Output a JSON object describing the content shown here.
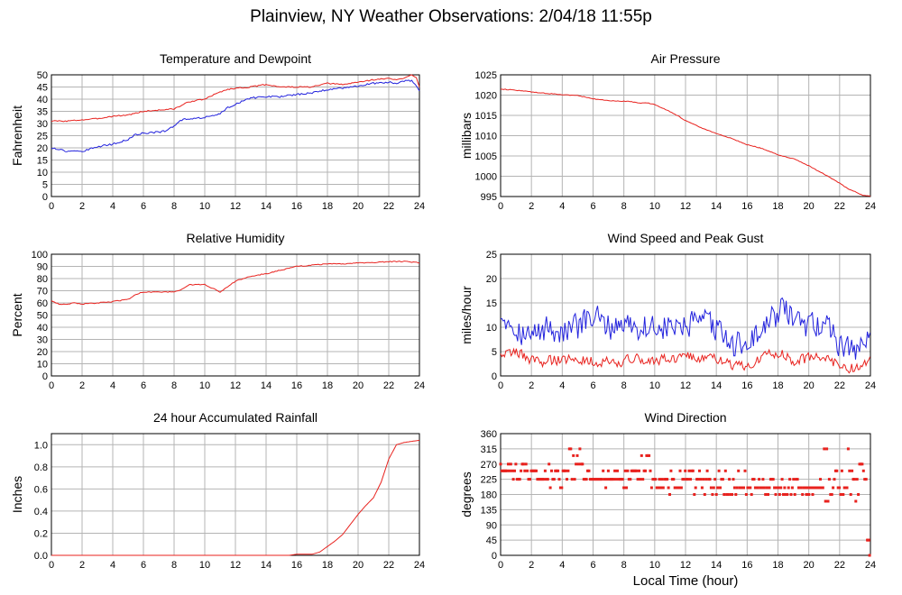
{
  "page": {
    "title": "Plainview, NY Weather Observations: 2/04/18 11:55p",
    "x_axis_title": "Local Time (hour)"
  },
  "colors": {
    "red": "#e8221e",
    "blue": "#2222dd",
    "grid": "#b4b4b4",
    "frame": "#000000"
  },
  "chart_data": [
    {
      "id": "temp",
      "type": "line",
      "title": "Temperature and Dewpoint",
      "ylabel": "Fahrenheit",
      "xlim": [
        0,
        24
      ],
      "ylim": [
        0,
        50
      ],
      "yticks": [
        0,
        5,
        10,
        15,
        20,
        25,
        30,
        35,
        40,
        45,
        50
      ],
      "xticks": [
        0,
        2,
        4,
        6,
        8,
        10,
        12,
        14,
        16,
        18,
        20,
        22,
        24
      ],
      "series": [
        {
          "color": "red",
          "jitter": 0.25,
          "x": [
            0,
            1,
            2,
            3,
            4,
            5,
            6,
            7,
            8,
            9,
            10,
            11,
            11.5,
            12,
            13,
            14,
            15,
            16,
            17,
            18,
            19,
            20,
            21,
            22,
            22.5,
            23,
            23.5,
            23.8,
            24
          ],
          "y": [
            31,
            31,
            31.5,
            32,
            33,
            33.5,
            35,
            35.5,
            36,
            39,
            40,
            43,
            44,
            44.5,
            45,
            46,
            45,
            45,
            45,
            46.5,
            46,
            47,
            48,
            48.5,
            48,
            48.5,
            50,
            49,
            45
          ]
        },
        {
          "color": "blue",
          "jitter": 0.35,
          "x": [
            0,
            0.5,
            1,
            1.5,
            2,
            2.5,
            3,
            4,
            5,
            5.5,
            6,
            7,
            7.5,
            8,
            8.5,
            9,
            10,
            11,
            11.5,
            12,
            13,
            14,
            15,
            16,
            17,
            18,
            19,
            20,
            21,
            22,
            22.5,
            23,
            23.5,
            24
          ],
          "y": [
            20,
            19.5,
            18.5,
            19,
            18.5,
            19.5,
            20.5,
            21.5,
            23.5,
            25.5,
            26,
            26.5,
            27,
            29,
            31.5,
            32,
            32.5,
            34,
            36.5,
            38,
            40.5,
            41,
            41,
            42,
            42.5,
            44,
            44.5,
            45.5,
            46.5,
            47,
            46.5,
            47.5,
            47.5,
            43.5
          ]
        }
      ]
    },
    {
      "id": "pressure",
      "type": "line",
      "title": "Air Pressure",
      "ylabel": "millibars",
      "xlim": [
        0,
        24
      ],
      "ylim": [
        995,
        1025
      ],
      "yticks": [
        995,
        1000,
        1005,
        1010,
        1015,
        1020,
        1025
      ],
      "xticks": [
        0,
        2,
        4,
        6,
        8,
        10,
        12,
        14,
        16,
        18,
        20,
        22,
        24
      ],
      "series": [
        {
          "color": "red",
          "jitter": 0.08,
          "x": [
            0,
            1,
            2,
            3,
            4,
            5,
            6,
            7,
            8,
            8.5,
            9,
            9.5,
            10,
            10.5,
            11,
            11.5,
            12,
            13,
            14,
            15,
            16,
            17,
            18,
            19,
            20,
            21,
            22,
            22.5,
            23,
            23.5,
            24
          ],
          "y": [
            1021.5,
            1021.2,
            1020.8,
            1020.4,
            1020.1,
            1019.9,
            1019.1,
            1018.6,
            1018.5,
            1018.4,
            1018.0,
            1018.1,
            1017.7,
            1016.8,
            1015.9,
            1014.9,
            1013.7,
            1012.0,
            1010.5,
            1009.3,
            1007.8,
            1006.8,
            1005.3,
            1004.3,
            1002.6,
            1000.5,
            998.3,
            997.0,
            996.2,
            995.3,
            995.1
          ]
        }
      ]
    },
    {
      "id": "humidity",
      "type": "line",
      "title": "Relative Humidity",
      "ylabel": "Percent",
      "xlim": [
        0,
        24
      ],
      "ylim": [
        0,
        100
      ],
      "yticks": [
        0,
        10,
        20,
        30,
        40,
        50,
        60,
        70,
        80,
        90,
        100
      ],
      "xticks": [
        0,
        2,
        4,
        6,
        8,
        10,
        12,
        14,
        16,
        18,
        20,
        22,
        24
      ],
      "series": [
        {
          "color": "red",
          "jitter": 0.4,
          "x": [
            0,
            0.5,
            1,
            1.5,
            2,
            3,
            4,
            5,
            5.5,
            6,
            7,
            8,
            8.5,
            9,
            10,
            10.5,
            11,
            11.5,
            12,
            13,
            14,
            15,
            16,
            17,
            18,
            19,
            20,
            21,
            22,
            23,
            24
          ],
          "y": [
            62,
            59,
            59,
            60,
            59,
            60,
            61,
            63,
            67,
            69,
            69,
            69,
            71,
            75,
            75,
            72,
            69,
            73,
            78,
            82,
            84,
            87,
            90,
            91,
            92,
            92,
            93,
            93,
            94,
            94,
            93
          ]
        }
      ]
    },
    {
      "id": "wind",
      "type": "line",
      "title": "Wind Speed and Peak Gust",
      "ylabel": "miles/hour",
      "xlim": [
        0,
        24
      ],
      "ylim": [
        0,
        25
      ],
      "yticks": [
        0,
        5,
        10,
        15,
        20,
        25
      ],
      "xticks": [
        0,
        2,
        4,
        6,
        8,
        10,
        12,
        14,
        16,
        18,
        20,
        22,
        24
      ],
      "series": [
        {
          "color": "blue",
          "noisy": true,
          "amp": 3.5,
          "seed": 7,
          "x": [
            0,
            0.5,
            1,
            1.5,
            2,
            3,
            4,
            5,
            6,
            7,
            8,
            9,
            10,
            11,
            12,
            13,
            14,
            14.5,
            15,
            16,
            17,
            17.5,
            18,
            18.5,
            19,
            20,
            21,
            22,
            22.5,
            23,
            23.5,
            24
          ],
          "y": [
            13,
            12,
            10,
            9,
            8,
            10,
            9,
            10,
            12,
            10,
            11,
            10,
            10,
            10,
            10,
            11,
            10,
            8,
            6,
            7,
            9,
            11,
            13,
            14,
            11,
            10,
            11,
            7,
            6,
            5,
            7,
            7
          ]
        },
        {
          "color": "red",
          "noisy": true,
          "amp": 1.4,
          "seed": 19,
          "x": [
            0,
            1,
            2,
            3,
            4,
            5,
            6,
            7,
            8,
            9,
            10,
            11,
            12,
            13,
            14,
            15,
            16,
            17,
            18,
            19,
            20,
            21,
            22,
            23,
            24
          ],
          "y": [
            5,
            5,
            3,
            3,
            3.5,
            3.5,
            3,
            3,
            3,
            3.5,
            3,
            3.5,
            4,
            3.5,
            3.5,
            2,
            2.5,
            4,
            5,
            3,
            3.5,
            4,
            2,
            1.5,
            3
          ]
        }
      ]
    },
    {
      "id": "rain",
      "type": "line",
      "title": "24 hour Accumulated Rainfall",
      "ylabel": "Inches",
      "xlim": [
        0,
        24
      ],
      "ylim": [
        0,
        1.1
      ],
      "yticks": [
        0.0,
        0.2,
        0.4,
        0.6,
        0.8,
        1.0
      ],
      "ytick_labels": [
        "0.0",
        "0.2",
        "0.4",
        "0.6",
        "0.8",
        "1.0"
      ],
      "xticks": [
        0,
        2,
        4,
        6,
        8,
        10,
        12,
        14,
        16,
        18,
        20,
        22,
        24
      ],
      "series": [
        {
          "color": "red",
          "jitter": 0.0,
          "x": [
            0,
            15.5,
            16,
            17,
            17.5,
            18,
            18.5,
            19,
            19.5,
            20,
            20.5,
            21,
            21.5,
            22,
            22.5,
            23,
            23.5,
            24
          ],
          "y": [
            0,
            0,
            0.01,
            0.01,
            0.03,
            0.08,
            0.13,
            0.19,
            0.28,
            0.37,
            0.45,
            0.52,
            0.66,
            0.87,
            1.0,
            1.02,
            1.03,
            1.04
          ]
        }
      ]
    },
    {
      "id": "dir",
      "type": "scatter",
      "title": "Wind Direction",
      "ylabel": "degrees",
      "xlim": [
        0,
        24
      ],
      "ylim": [
        0,
        360
      ],
      "yticks": [
        0,
        45,
        90,
        135,
        180,
        225,
        270,
        315,
        360
      ],
      "xticks": [
        0,
        2,
        4,
        6,
        8,
        10,
        12,
        14,
        16,
        18,
        20,
        22,
        24
      ],
      "segments": [
        {
          "x0": 0.0,
          "x1": 1.9,
          "vals": [
            225,
            250,
            270,
            250,
            270,
            225,
            250,
            270,
            250
          ]
        },
        {
          "x0": 1.9,
          "x1": 4.3,
          "vals": [
            250,
            225,
            250,
            200,
            225,
            250,
            225,
            270,
            250,
            225
          ]
        },
        {
          "x0": 4.3,
          "x1": 5.4,
          "vals": [
            315,
            270,
            250,
            295,
            270,
            250,
            225
          ]
        },
        {
          "x0": 5.4,
          "x1": 8.5,
          "vals": [
            225,
            200,
            225,
            250,
            225,
            200,
            225,
            250,
            225
          ]
        },
        {
          "x0": 8.5,
          "x1": 9.8,
          "vals": [
            250,
            225,
            250,
            295,
            250,
            225,
            250
          ]
        },
        {
          "x0": 9.8,
          "x1": 14.0,
          "vals": [
            225,
            200,
            225,
            250,
            200,
            225,
            200,
            225,
            180,
            225
          ]
        },
        {
          "x0": 14.0,
          "x1": 16.2,
          "vals": [
            225,
            200,
            250,
            180,
            200,
            180,
            200,
            225
          ]
        },
        {
          "x0": 16.2,
          "x1": 21.0,
          "vals": [
            200,
            225,
            200,
            180,
            200,
            225,
            200,
            180,
            200
          ]
        },
        {
          "x0": 21.0,
          "x1": 23.3,
          "vals": [
            200,
            250,
            180,
            200,
            315,
            160,
            180,
            225,
            200
          ]
        },
        {
          "x0": 23.3,
          "x1": 23.8,
          "vals": [
            225,
            250,
            270,
            225
          ]
        },
        {
          "x0": 23.8,
          "x1": 24.0,
          "vals": [
            0,
            20,
            45,
            360
          ]
        }
      ]
    }
  ]
}
